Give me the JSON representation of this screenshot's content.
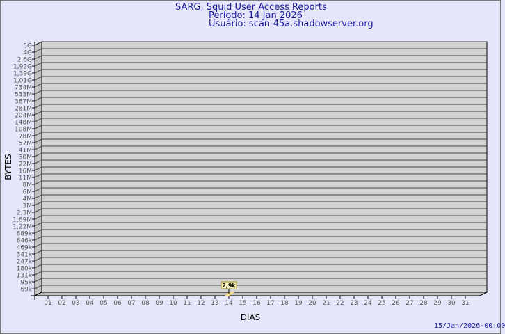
{
  "chart_data": {
    "type": "bar",
    "title": "SARG, Squid User Access Reports",
    "subtitle_period": "Período: 14 Jan 2026",
    "subtitle_user": "Usuário: scan-45a.shadowserver.org",
    "xlabel": "DIAS",
    "ylabel": "BYTES",
    "y_scale": "log",
    "categories": [
      "01",
      "02",
      "03",
      "04",
      "05",
      "06",
      "07",
      "08",
      "09",
      "10",
      "11",
      "12",
      "13",
      "14",
      "15",
      "16",
      "17",
      "18",
      "19",
      "20",
      "21",
      "22",
      "23",
      "24",
      "25",
      "26",
      "27",
      "28",
      "29",
      "30",
      "31"
    ],
    "y_tick_labels": [
      "5G",
      "4G",
      "2,6G",
      "1,92G",
      "1,39G",
      "1,01G",
      "734M",
      "533M",
      "387M",
      "281M",
      "204M",
      "148M",
      "108M",
      "78M",
      "57M",
      "41M",
      "30M",
      "22M",
      "16M",
      "11M",
      "8M",
      "6M",
      "4M",
      "3M",
      "2,3M",
      "1,69M",
      "1,22M",
      "889k",
      "646k",
      "469k",
      "341k",
      "247k",
      "180k",
      "131k",
      "95k",
      "69k"
    ],
    "bars": [
      {
        "day": "14",
        "value": 2900,
        "label": "2,9k"
      }
    ],
    "grid": true,
    "colors": {
      "background": "#e6e6fa",
      "plot": "#d3d3d3",
      "bar": "#f5e6a0",
      "title": "#1a1a9c"
    }
  },
  "footer_timestamp": "15/Jan/2026-00:00"
}
